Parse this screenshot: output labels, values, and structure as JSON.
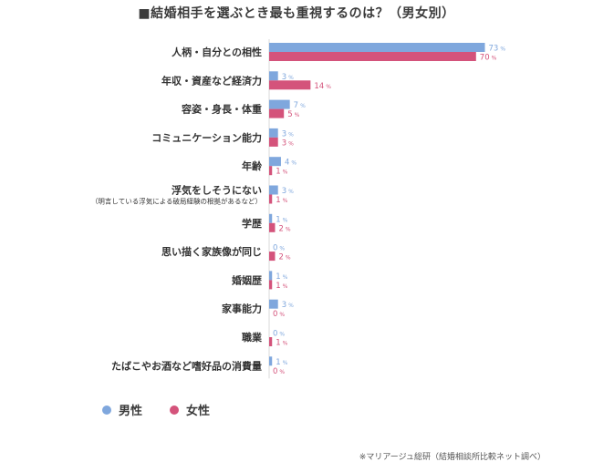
{
  "title": "■結婚相手を選ぶとき最も重視するのは？（男女別）",
  "source": "※マリアージュ総研（結婚相談所比較ネット調べ）",
  "colors": {
    "male": "#7fa7dd",
    "female": "#d4537b"
  },
  "chart_data": {
    "type": "bar",
    "orientation": "horizontal",
    "unit": "%",
    "categories": [
      {
        "label": "人柄・自分との相性"
      },
      {
        "label": "年収・資産など経済力"
      },
      {
        "label": "容姿・身長・体重"
      },
      {
        "label": "コミュニケーション能力"
      },
      {
        "label": "年齢"
      },
      {
        "label": "浮気をしそうにない",
        "sublabel": "（明言している浮気による破局経験の根拠があるなど）"
      },
      {
        "label": "学歴"
      },
      {
        "label": "思い描く家族像が同じ"
      },
      {
        "label": "婚姻歴"
      },
      {
        "label": "家事能力"
      },
      {
        "label": "職業"
      },
      {
        "label": "たばこやお酒など嗜好品の消費量"
      }
    ],
    "series": [
      {
        "name": "男性",
        "values": [
          73,
          3,
          7,
          3,
          4,
          3,
          1,
          0,
          1,
          3,
          0,
          1
        ]
      },
      {
        "name": "女性",
        "values": [
          70,
          14,
          5,
          3,
          1,
          1,
          2,
          2,
          1,
          0,
          1,
          0
        ]
      }
    ],
    "xlim": [
      0,
      100
    ],
    "legend_position": "bottom-left"
  }
}
